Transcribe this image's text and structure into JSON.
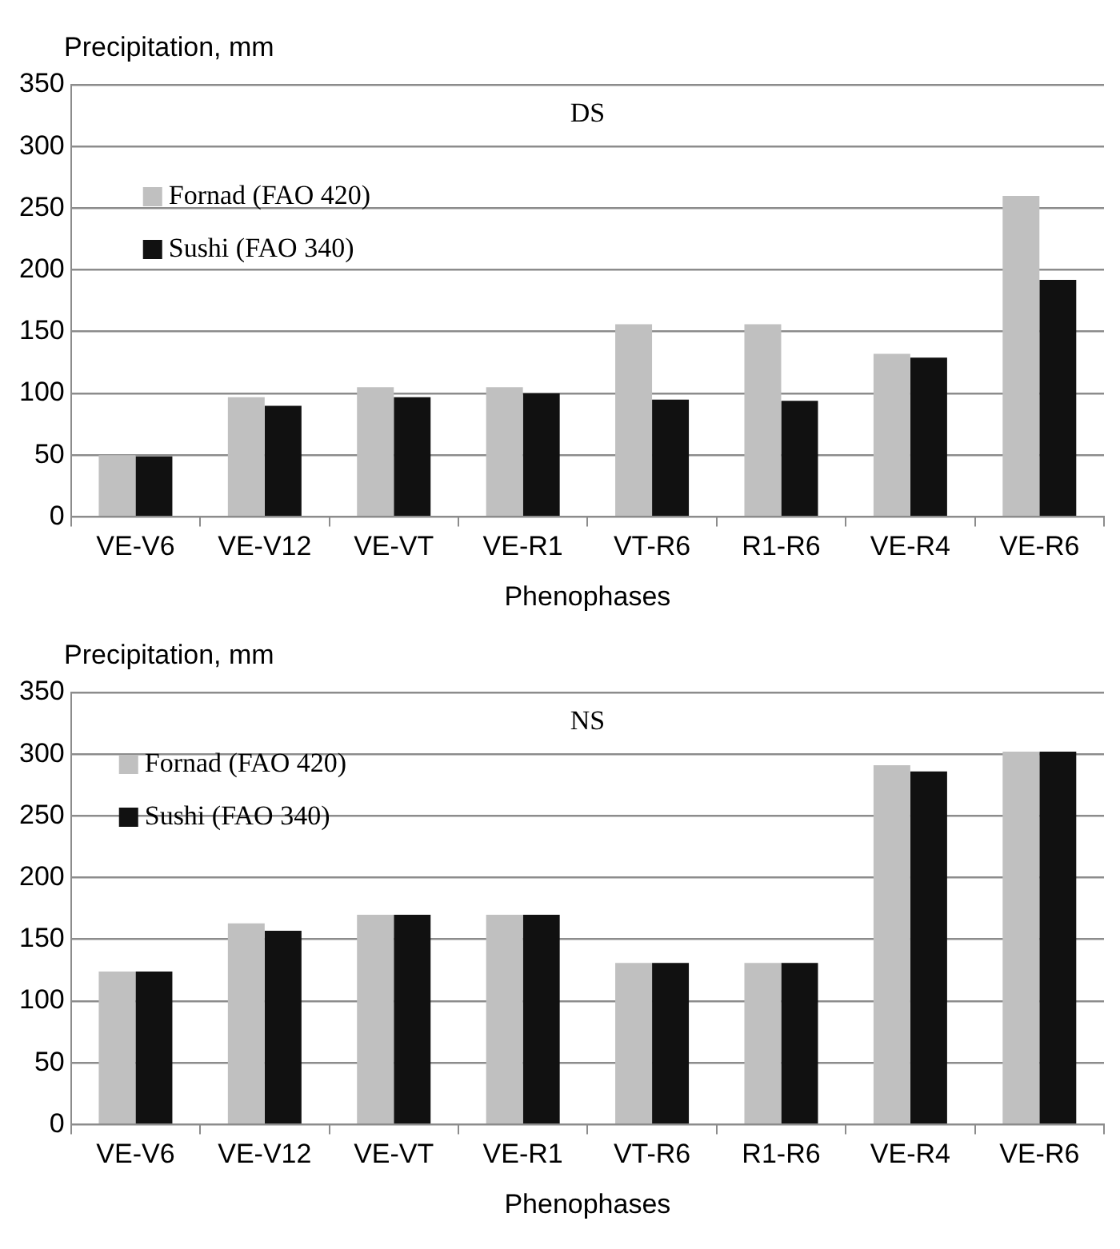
{
  "chart_data": [
    {
      "type": "bar",
      "title": "DS",
      "ylabel": "Precipitation, mm",
      "xlabel": "Phenophases",
      "categories": [
        "VE-V6",
        "VE-V12",
        "VE-VT",
        "VE-R1",
        "VT-R6",
        "R1-R6",
        "VE-R4",
        "VE-R6"
      ],
      "series": [
        {
          "name": "Fornad (FAO 420)",
          "color": "#c0c0c0",
          "values": [
            50,
            97,
            105,
            105,
            156,
            156,
            132,
            260
          ]
        },
        {
          "name": "Sushi (FAO 340)",
          "color": "#111111",
          "values": [
            49,
            90,
            97,
            100,
            95,
            94,
            129,
            192
          ]
        }
      ],
      "ylim": [
        0,
        350
      ],
      "yticks": [
        0,
        50,
        100,
        150,
        200,
        250,
        300,
        350
      ],
      "grid": "y",
      "legend": "top left"
    },
    {
      "type": "bar",
      "title": "NS",
      "ylabel": "Precipitation, mm",
      "xlabel": "Phenophases",
      "categories": [
        "VE-V6",
        "VE-V12",
        "VE-VT",
        "VE-R1",
        "VT-R6",
        "R1-R6",
        "VE-R4",
        "VE-R6"
      ],
      "series": [
        {
          "name": "Fornad (FAO 420)",
          "color": "#c0c0c0",
          "values": [
            124,
            163,
            170,
            170,
            131,
            131,
            291,
            302
          ]
        },
        {
          "name": "Sushi (FAO 340)",
          "color": "#111111",
          "values": [
            124,
            157,
            170,
            170,
            131,
            131,
            286,
            302
          ]
        }
      ],
      "ylim": [
        0,
        350
      ],
      "yticks": [
        0,
        50,
        100,
        150,
        200,
        250,
        300,
        350
      ],
      "grid": "y",
      "legend": "top left"
    }
  ]
}
